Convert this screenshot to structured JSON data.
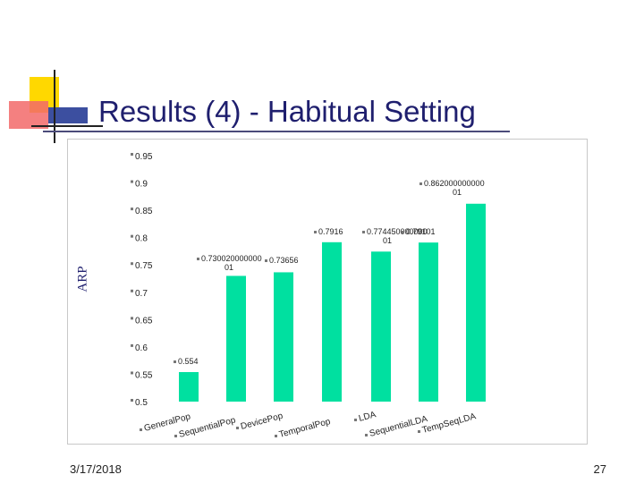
{
  "slide": {
    "title": "Results (4) - Habitual Setting",
    "date": "3/17/2018",
    "page_number": "27",
    "accent_colors": {
      "title": "#1f1f6e",
      "yellow": "#ffd800",
      "red": "#e83b3b",
      "blue": "#3c4fa0"
    }
  },
  "chart_data": {
    "type": "bar",
    "ylabel": "ARP",
    "ylim": [
      0.5,
      0.95
    ],
    "grid": false,
    "bar_color": "#00e0a0",
    "ytick_labels": [
      "0.5",
      "0.55",
      "0.6",
      "0.65",
      "0.7",
      "0.75",
      "0.8",
      "0.85",
      "0.9",
      "0.95"
    ],
    "categories": [
      "GeneralPop",
      "SequentialPop",
      "DevicePop",
      "TemporalPop",
      "LDA",
      "SequentialLDA",
      "TempSeqLDA"
    ],
    "values": [
      0.554,
      0.73,
      0.73656,
      0.7916,
      0.77445,
      0.79101,
      0.862
    ],
    "data_labels": [
      "0.554",
      "0.730020000000 01",
      "0.73656",
      "0.7916",
      "0.774450000000 01",
      "0.79101",
      "0.862000000000 01"
    ]
  }
}
